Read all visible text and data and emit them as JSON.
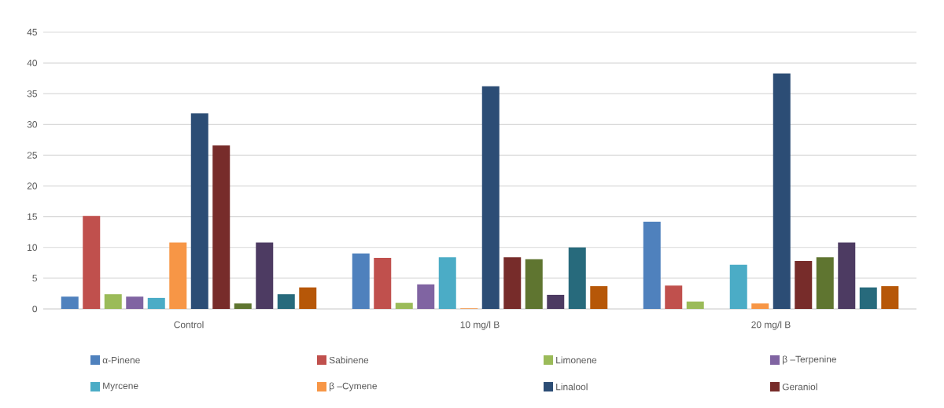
{
  "chart_data": {
    "type": "bar",
    "categories": [
      "Control",
      "10 mg/l  B",
      "20 mg/l B"
    ],
    "ylim": [
      0,
      45
    ],
    "yticks": [
      0,
      5,
      10,
      15,
      20,
      25,
      30,
      35,
      40,
      45
    ],
    "grid": "y",
    "legend": "bottom",
    "series": [
      {
        "name": "α-Pinene",
        "color": "#4f81bd",
        "values": [
          2.0,
          9.0,
          14.2
        ]
      },
      {
        "name": "Sabinene",
        "color": "#c0504d",
        "values": [
          15.1,
          8.3,
          3.8
        ]
      },
      {
        "name": "Limonene",
        "color": "#9bbb59",
        "values": [
          2.4,
          1.0,
          1.2
        ]
      },
      {
        "name": "β –Terpenine",
        "color": "#8064a2",
        "values": [
          2.0,
          4.0,
          0
        ]
      },
      {
        "name": "Myrcene",
        "color": "#4bacc6",
        "values": [
          1.8,
          8.4,
          7.2
        ]
      },
      {
        "name": "β –Cymene",
        "color": "#f79646",
        "values": [
          10.8,
          0.1,
          0.9
        ]
      },
      {
        "name": "Linalool",
        "color": "#2c4d75",
        "values": [
          31.8,
          36.2,
          38.3
        ]
      },
      {
        "name": "Geraniol",
        "color": "#772c2a",
        "values": [
          26.6,
          8.4,
          7.8
        ]
      },
      {
        "color": "#5f7530",
        "values": [
          0.9,
          8.1,
          8.4
        ]
      },
      {
        "color": "#4d3b62",
        "values": [
          10.8,
          2.3,
          10.8
        ]
      },
      {
        "color": "#276a7c",
        "values": [
          2.4,
          10.0,
          3.5
        ]
      },
      {
        "color": "#b65708",
        "values": [
          3.5,
          3.7,
          3.7
        ]
      }
    ]
  }
}
